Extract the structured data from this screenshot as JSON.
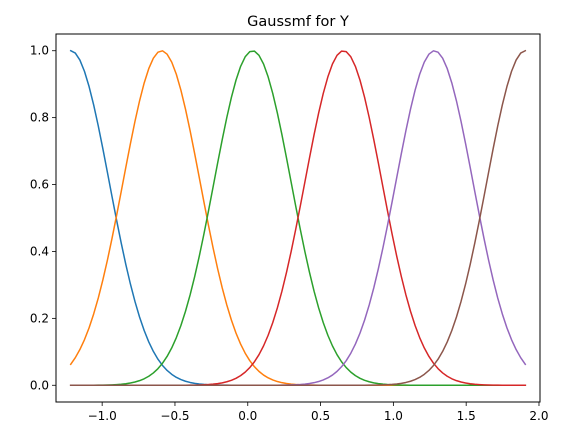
{
  "chart_data": {
    "type": "line",
    "title": "Gaussmf for Y",
    "xlabel": "",
    "ylabel": "",
    "xlim": [
      -1.317,
      2.007
    ],
    "ylim": [
      -0.05,
      1.05
    ],
    "xticks": [
      -1.0,
      -0.5,
      0.0,
      0.5,
      1.0,
      1.5,
      2.0
    ],
    "xtick_labels": [
      "−1.0",
      "−0.5",
      "0.0",
      "0.5",
      "1.0",
      "1.5",
      "2.0"
    ],
    "yticks": [
      0.0,
      0.2,
      0.4,
      0.6,
      0.8,
      1.0
    ],
    "ytick_labels": [
      "0.0",
      "0.2",
      "0.4",
      "0.6",
      "0.8",
      "1.0"
    ],
    "grid": false,
    "x_range": [
      -1.216,
      1.906
    ],
    "sigma": 0.2652,
    "series": [
      {
        "mean": -1.216,
        "color": "#1f77b4"
      },
      {
        "mean": -0.592,
        "color": "#ff7f0e"
      },
      {
        "mean": 0.033,
        "color": "#2ca02c"
      },
      {
        "mean": 0.657,
        "color": "#d62728"
      },
      {
        "mean": 1.282,
        "color": "#9467bd"
      },
      {
        "mean": 1.906,
        "color": "#8c564b"
      }
    ]
  }
}
